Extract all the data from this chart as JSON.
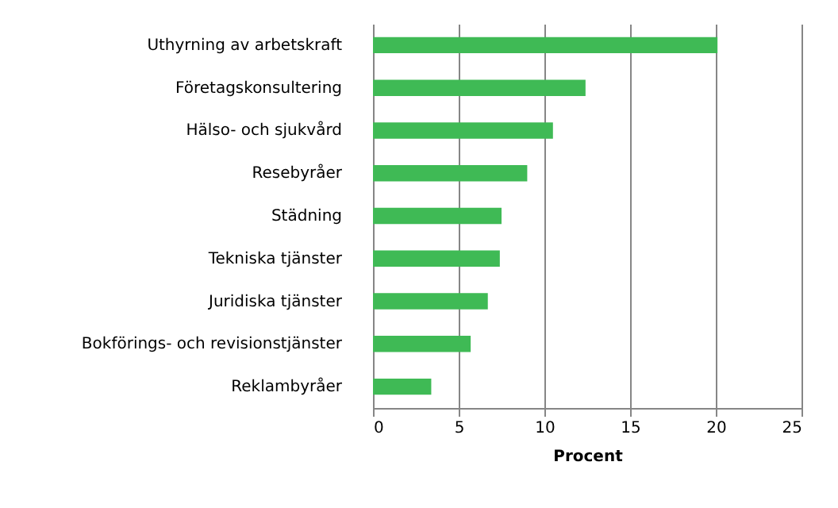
{
  "chart_data": {
    "type": "bar",
    "orientation": "horizontal",
    "xlabel": "Procent",
    "categories": [
      "Uthyrning av arbetskraft",
      "Företagskonsultering",
      "Hälso- och sjukvård",
      "Resebyråer",
      "Städning",
      "Tekniska tjänster",
      "Juridiska tjänster",
      "Bokförings- och revisionstjänster",
      "Reklambyråer"
    ],
    "values": [
      20.1,
      12.4,
      10.5,
      9.0,
      7.5,
      7.4,
      6.7,
      5.7,
      3.4
    ],
    "color": "#3fba55",
    "xlim": [
      0,
      25
    ],
    "xticks": [
      0,
      5,
      10,
      15,
      20,
      25
    ],
    "grid": "x"
  }
}
